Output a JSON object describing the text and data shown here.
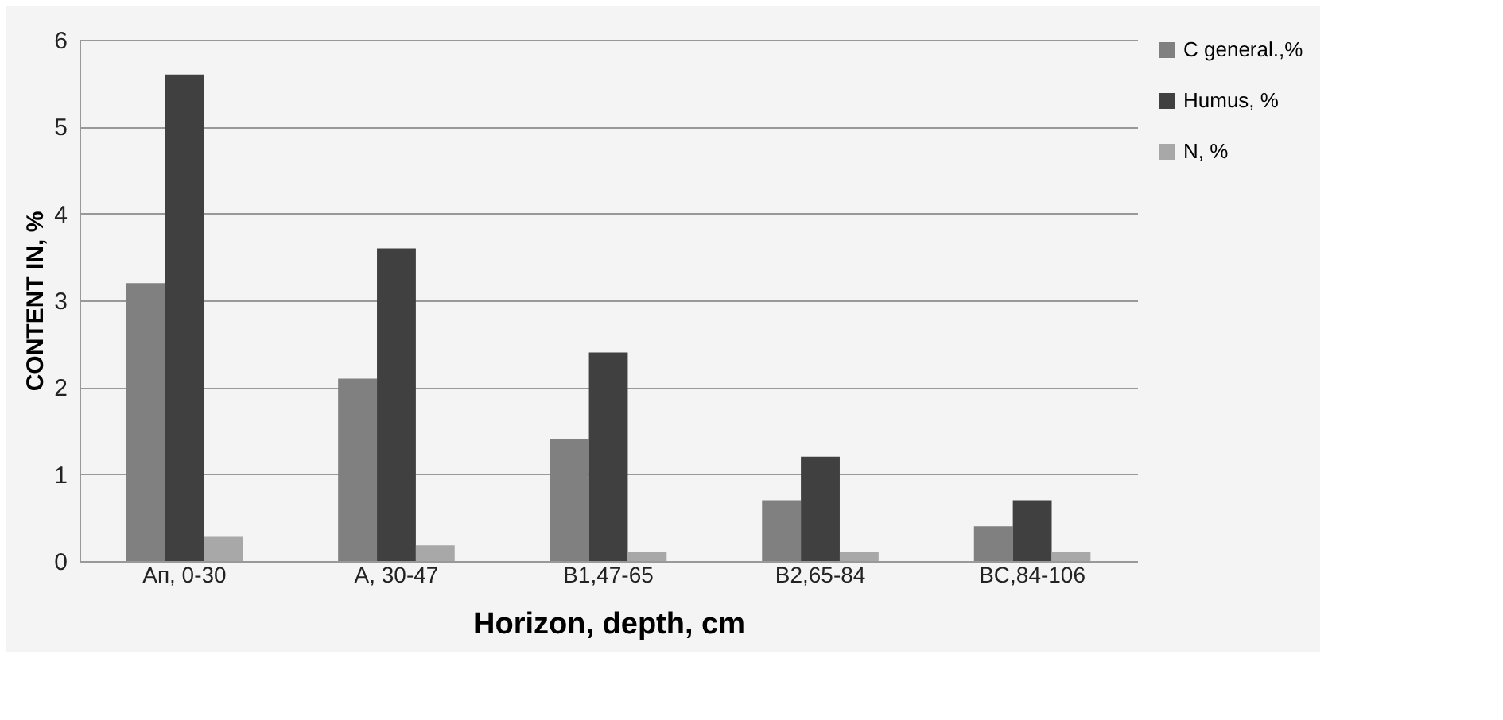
{
  "chart_data": {
    "type": "bar",
    "xlabel": "Horizon, depth, cm",
    "ylabel": "CONTENT IN, %",
    "categories": [
      "Aп, 0-30",
      "A, 30-47",
      "B1,47-65",
      "B2,65-84",
      "BC,84-106"
    ],
    "series": [
      {
        "name": "C general.,%",
        "color": "#808080",
        "values": [
          3.2,
          2.1,
          1.4,
          0.7,
          0.4
        ]
      },
      {
        "name": "Humus,  %",
        "color": "#404040",
        "values": [
          5.6,
          3.6,
          2.4,
          1.2,
          0.7
        ]
      },
      {
        "name": "N, %",
        "color": "#a8a8a8",
        "values": [
          0.28,
          0.18,
          0.1,
          0.1,
          0.1
        ]
      }
    ],
    "ylim": [
      0,
      6
    ],
    "yticks": [
      0,
      1,
      2,
      3,
      4,
      5,
      6
    ],
    "grid": "y",
    "legend": "right"
  }
}
